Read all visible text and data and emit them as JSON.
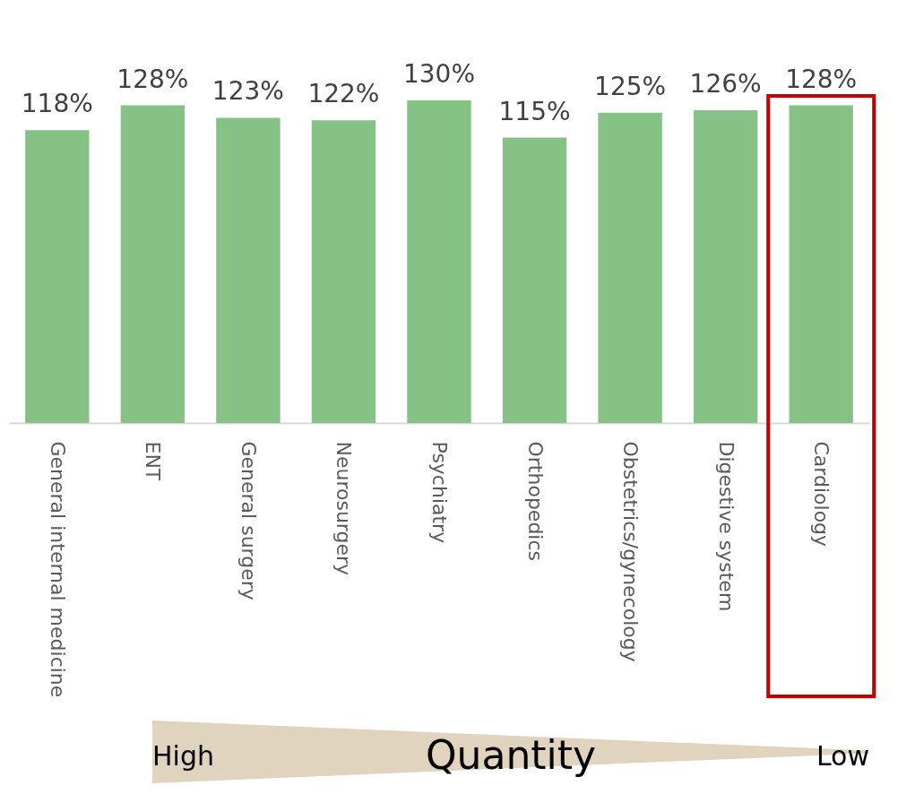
{
  "chart_data": {
    "type": "bar",
    "categories": [
      "General internal medicine",
      "ENT",
      "General surgery",
      "Neurosurgery",
      "Psychiatry",
      "Orthopedics",
      "Obstetrics/gynecology",
      "Digestive system",
      "Cardiology"
    ],
    "values": [
      118,
      128,
      123,
      122,
      130,
      115,
      125,
      126,
      128
    ],
    "value_labels": [
      "118%",
      "128%",
      "123%",
      "122%",
      "130%",
      "115%",
      "125%",
      "126%",
      "128%"
    ],
    "color": "#86c186",
    "tick_labels": "x",
    "grid": false,
    "annotations": [
      "High",
      "Quantity",
      "Low"
    ]
  }
}
